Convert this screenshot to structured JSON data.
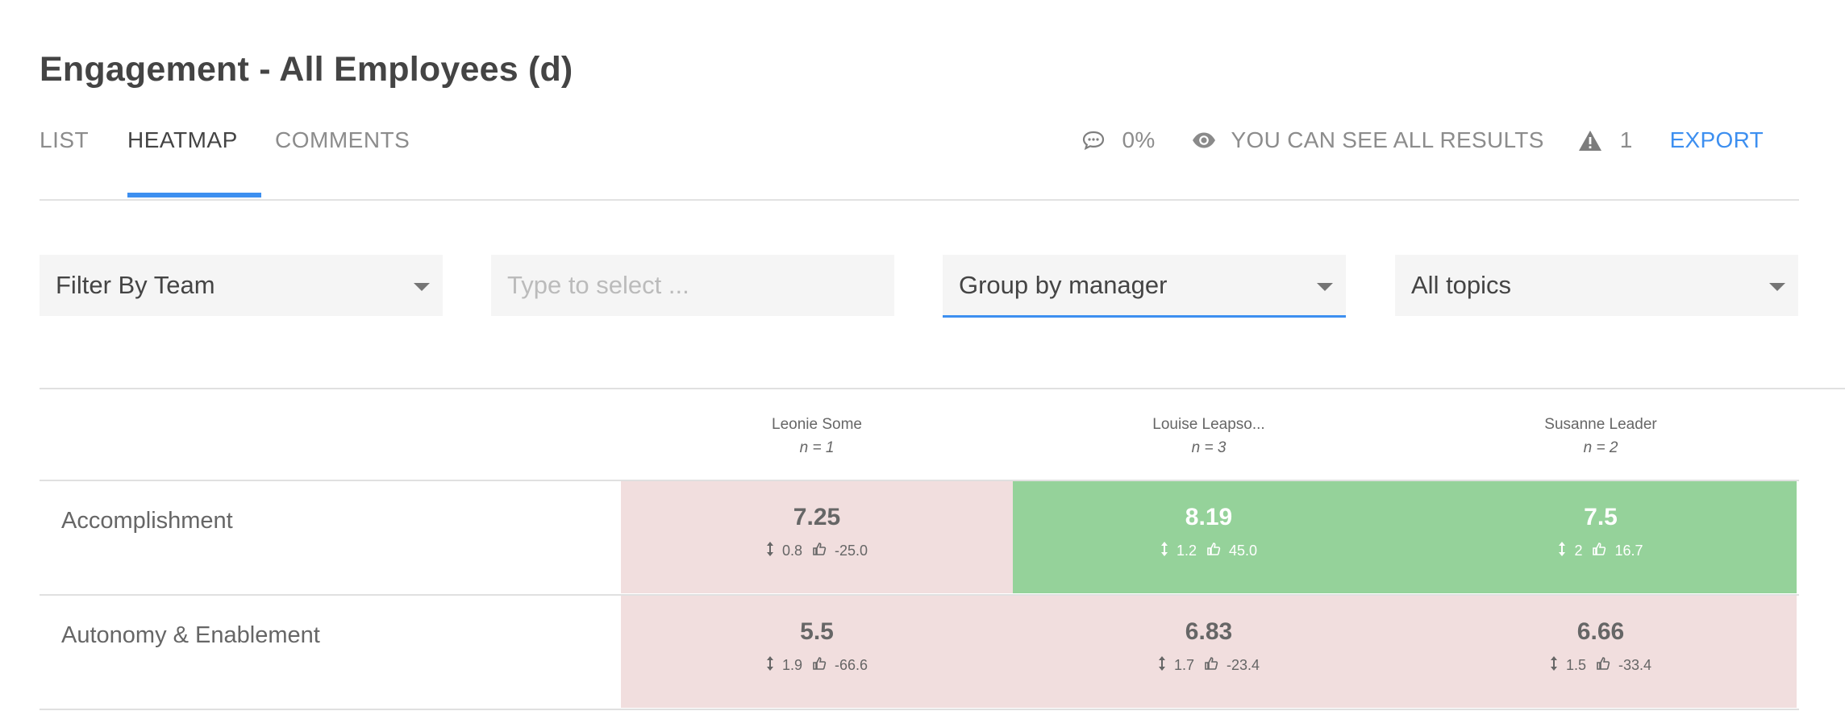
{
  "page": {
    "title": "Engagement - All Employees (d)"
  },
  "tabs": [
    {
      "label": "LIST",
      "active": false
    },
    {
      "label": "HEATMAP",
      "active": true
    },
    {
      "label": "COMMENTS",
      "active": false
    }
  ],
  "tools": {
    "comments_icon": "speech-bubble-icon",
    "comments_pct": "0%",
    "visibility_icon": "eye-icon",
    "visibility_text": "YOU CAN SEE ALL RESULTS",
    "warning_icon": "warning-triangle-icon",
    "warning_count": "1",
    "export_label": "EXPORT"
  },
  "filters": {
    "team": {
      "value": "Filter By Team"
    },
    "search": {
      "placeholder": "Type to select ..."
    },
    "group": {
      "value": "Group by manager"
    },
    "topics": {
      "value": "All topics"
    }
  },
  "accent": "#3d8ff0",
  "colors": {
    "negative": "#f1dede",
    "positive": "#95d29a"
  },
  "heatmap": {
    "columns": [
      {
        "name": "Leonie Some",
        "n": "n = 1"
      },
      {
        "name": "Louise Leapso...",
        "n": "n = 3"
      },
      {
        "name": "Susanne Leader",
        "n": "n = 2"
      }
    ],
    "rows": [
      {
        "label": "Accomplishment",
        "cells": [
          {
            "score": "7.25",
            "spread": "0.8",
            "diff": "-25.0",
            "tone": "negative"
          },
          {
            "score": "8.19",
            "spread": "1.2",
            "diff": "45.0",
            "tone": "positive"
          },
          {
            "score": "7.5",
            "spread": "2",
            "diff": "16.7",
            "tone": "positive"
          }
        ]
      },
      {
        "label": "Autonomy & Enablement",
        "cells": [
          {
            "score": "5.5",
            "spread": "1.9",
            "diff": "-66.6",
            "tone": "negative"
          },
          {
            "score": "6.83",
            "spread": "1.7",
            "diff": "-23.4",
            "tone": "negative"
          },
          {
            "score": "6.66",
            "spread": "1.5",
            "diff": "-33.4",
            "tone": "negative"
          }
        ]
      }
    ]
  }
}
